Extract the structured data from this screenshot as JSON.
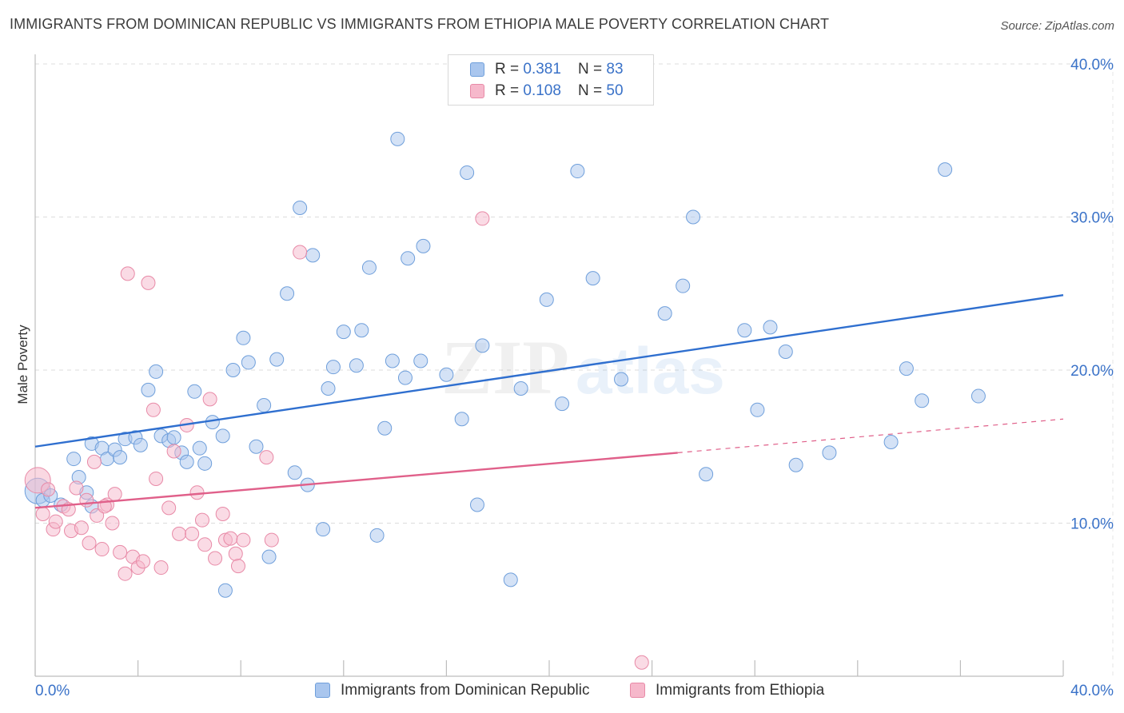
{
  "title": "IMMIGRANTS FROM DOMINICAN REPUBLIC VS IMMIGRANTS FROM ETHIOPIA MALE POVERTY CORRELATION CHART",
  "source": "Source: ZipAtlas.com",
  "watermark": {
    "zip": "ZIP",
    "atlas": "atlas"
  },
  "legend": {
    "r_label": "R = ",
    "n_label": "N = ",
    "rows": [
      {
        "r": "0.381",
        "n": "83",
        "color": "#a9c6ee"
      },
      {
        "r": "0.108",
        "n": "50",
        "color": "#f6b8cb"
      }
    ]
  },
  "chart_data": {
    "type": "scatter",
    "title": "IMMIGRANTS FROM DOMINICAN REPUBLIC VS IMMIGRANTS FROM ETHIOPIA MALE POVERTY CORRELATION CHART",
    "ylabel": "Male Poverty",
    "xlabel": "",
    "xlim": [
      0,
      40
    ],
    "ylim": [
      0,
      40
    ],
    "x_tick_labels": [
      "0.0%",
      "40.0%"
    ],
    "y_tick_labels": [
      "10.0%",
      "20.0%",
      "30.0%",
      "40.0%"
    ],
    "y_ticks": [
      10,
      20,
      30,
      40
    ],
    "grid": true,
    "legend_position": "top-center",
    "series": [
      {
        "name": "Immigrants from Dominican Republic",
        "color": "#a9c6ee",
        "stroke": "#6f9fdb",
        "line_color": "#2f6fcf",
        "trend": {
          "x": [
            0,
            40
          ],
          "y": [
            15.0,
            24.9
          ]
        },
        "points": [
          [
            0.1,
            12.1
          ],
          [
            0.3,
            11.5
          ],
          [
            0.6,
            11.8
          ],
          [
            1.0,
            11.2
          ],
          [
            1.5,
            14.2
          ],
          [
            1.7,
            13.0
          ],
          [
            2.0,
            12.0
          ],
          [
            2.2,
            11.1
          ],
          [
            2.2,
            15.2
          ],
          [
            2.6,
            14.9
          ],
          [
            2.8,
            14.2
          ],
          [
            3.1,
            14.8
          ],
          [
            3.3,
            14.3
          ],
          [
            3.5,
            15.5
          ],
          [
            3.9,
            15.6
          ],
          [
            4.1,
            15.1
          ],
          [
            4.4,
            18.7
          ],
          [
            4.7,
            19.9
          ],
          [
            4.9,
            15.7
          ],
          [
            5.2,
            15.4
          ],
          [
            5.4,
            15.6
          ],
          [
            5.7,
            14.6
          ],
          [
            5.9,
            14.0
          ],
          [
            6.2,
            18.6
          ],
          [
            6.4,
            14.9
          ],
          [
            6.6,
            13.9
          ],
          [
            6.9,
            16.6
          ],
          [
            7.3,
            15.7
          ],
          [
            7.4,
            5.6
          ],
          [
            7.7,
            20.0
          ],
          [
            8.1,
            22.1
          ],
          [
            8.3,
            20.5
          ],
          [
            8.6,
            15.0
          ],
          [
            8.9,
            17.7
          ],
          [
            9.1,
            7.8
          ],
          [
            9.4,
            20.7
          ],
          [
            9.8,
            25.0
          ],
          [
            10.1,
            13.3
          ],
          [
            10.3,
            30.6
          ],
          [
            10.6,
            12.5
          ],
          [
            10.8,
            27.5
          ],
          [
            11.2,
            9.6
          ],
          [
            11.4,
            18.8
          ],
          [
            11.6,
            20.2
          ],
          [
            12.0,
            22.5
          ],
          [
            12.5,
            20.3
          ],
          [
            12.7,
            22.6
          ],
          [
            13.0,
            26.7
          ],
          [
            13.3,
            9.2
          ],
          [
            13.6,
            16.2
          ],
          [
            13.9,
            20.6
          ],
          [
            14.4,
            19.5
          ],
          [
            14.1,
            35.1
          ],
          [
            14.5,
            27.3
          ],
          [
            15.0,
            20.6
          ],
          [
            15.1,
            28.1
          ],
          [
            16.0,
            19.7
          ],
          [
            16.6,
            16.8
          ],
          [
            16.8,
            32.9
          ],
          [
            17.2,
            11.2
          ],
          [
            17.4,
            21.6
          ],
          [
            18.5,
            6.3
          ],
          [
            18.9,
            18.8
          ],
          [
            19.9,
            24.6
          ],
          [
            20.5,
            17.8
          ],
          [
            21.1,
            33.0
          ],
          [
            21.7,
            26.0
          ],
          [
            22.8,
            19.4
          ],
          [
            24.5,
            23.7
          ],
          [
            25.2,
            25.5
          ],
          [
            25.6,
            30.0
          ],
          [
            26.1,
            13.2
          ],
          [
            27.6,
            22.6
          ],
          [
            28.1,
            17.4
          ],
          [
            28.6,
            22.8
          ],
          [
            29.2,
            21.2
          ],
          [
            29.6,
            13.8
          ],
          [
            30.9,
            14.6
          ],
          [
            33.3,
            15.3
          ],
          [
            33.9,
            20.1
          ],
          [
            34.5,
            18.0
          ],
          [
            35.4,
            33.1
          ],
          [
            36.7,
            18.3
          ]
        ],
        "r": "0.381",
        "n": "83"
      },
      {
        "name": "Immigrants from Ethiopia",
        "color": "#f6b8cb",
        "stroke": "#e88aa7",
        "line_color": "#e0608a",
        "trend": {
          "x": [
            0,
            25.0
          ],
          "y": [
            11.0,
            14.6
          ]
        },
        "trend_dashed": {
          "x": [
            25.0,
            40
          ],
          "y": [
            14.6,
            16.8
          ]
        },
        "points": [
          [
            0.1,
            12.8
          ],
          [
            0.3,
            10.6
          ],
          [
            0.5,
            12.2
          ],
          [
            0.7,
            9.6
          ],
          [
            0.8,
            10.1
          ],
          [
            1.1,
            11.1
          ],
          [
            1.3,
            10.9
          ],
          [
            1.4,
            9.5
          ],
          [
            1.6,
            12.3
          ],
          [
            1.8,
            9.7
          ],
          [
            2.0,
            11.5
          ],
          [
            2.1,
            8.7
          ],
          [
            2.3,
            14.0
          ],
          [
            2.4,
            10.5
          ],
          [
            2.6,
            8.3
          ],
          [
            2.8,
            11.2
          ],
          [
            3.0,
            10.0
          ],
          [
            3.1,
            11.9
          ],
          [
            3.3,
            8.1
          ],
          [
            3.5,
            6.7
          ],
          [
            3.6,
            26.3
          ],
          [
            3.8,
            7.8
          ],
          [
            4.0,
            7.1
          ],
          [
            4.2,
            7.5
          ],
          [
            4.4,
            25.7
          ],
          [
            4.6,
            17.4
          ],
          [
            4.7,
            12.9
          ],
          [
            4.9,
            7.1
          ],
          [
            5.2,
            11.0
          ],
          [
            5.4,
            14.7
          ],
          [
            5.6,
            9.3
          ],
          [
            5.9,
            16.4
          ],
          [
            6.1,
            9.3
          ],
          [
            6.3,
            12.0
          ],
          [
            6.5,
            10.2
          ],
          [
            6.6,
            8.6
          ],
          [
            6.8,
            18.1
          ],
          [
            7.0,
            7.7
          ],
          [
            7.3,
            10.6
          ],
          [
            7.4,
            8.9
          ],
          [
            7.6,
            9.0
          ],
          [
            7.8,
            8.0
          ],
          [
            7.9,
            7.2
          ],
          [
            8.1,
            8.9
          ],
          [
            9.0,
            14.3
          ],
          [
            9.2,
            8.9
          ],
          [
            10.3,
            27.7
          ],
          [
            17.4,
            29.9
          ],
          [
            23.6,
            0.9
          ],
          [
            2.7,
            11.1
          ]
        ],
        "r": "0.108",
        "n": "50"
      }
    ]
  }
}
